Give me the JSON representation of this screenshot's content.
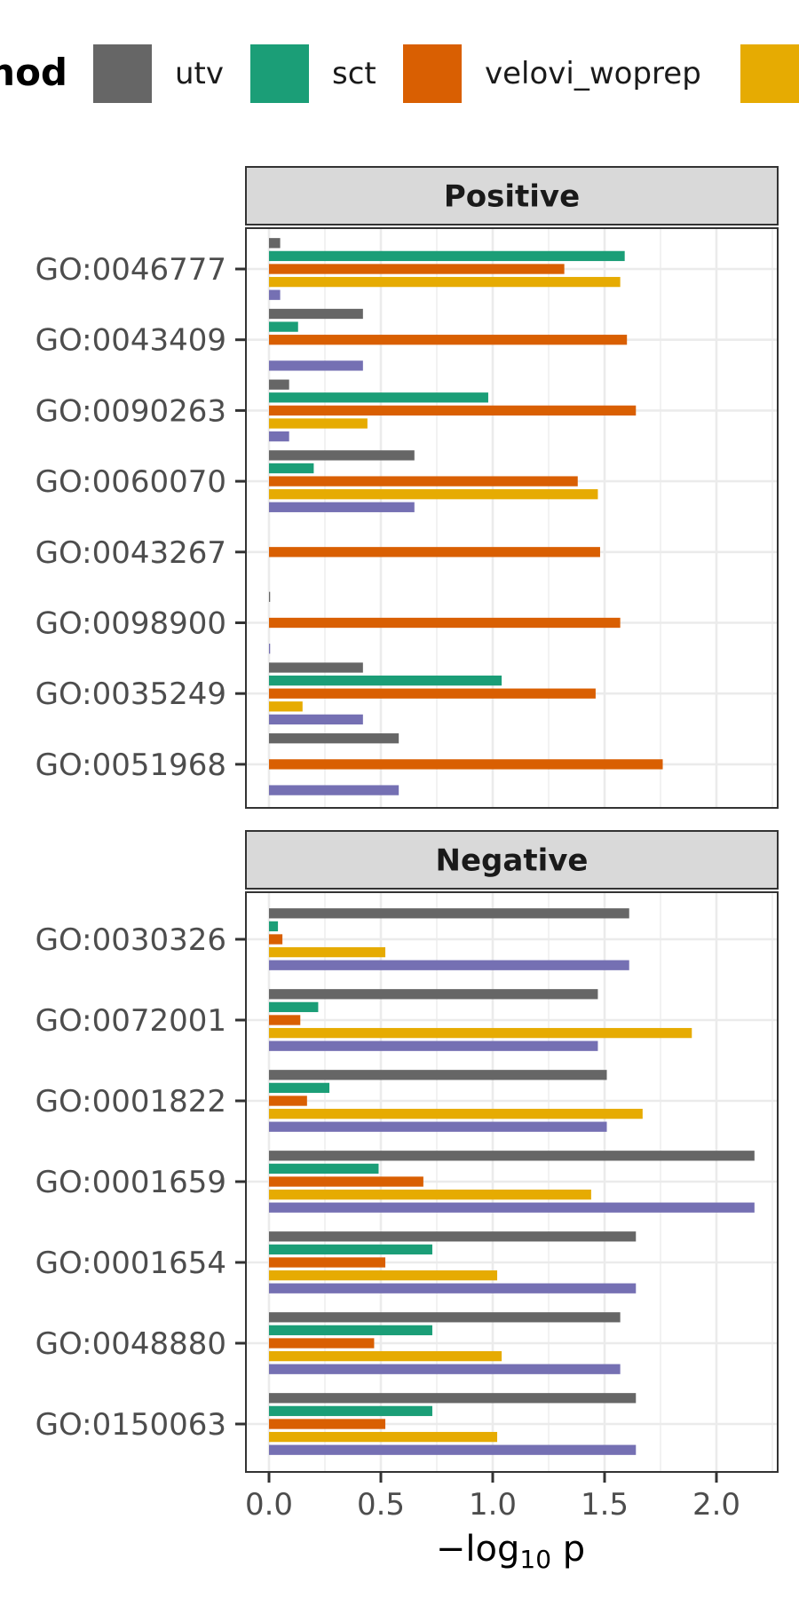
{
  "chart_data": {
    "type": "bar",
    "orientation": "horizontal",
    "legend": {
      "title": "Method",
      "position": "top",
      "entries": [
        {
          "name": "utv",
          "color": "#666666"
        },
        {
          "name": "sct",
          "color": "#1b9e77"
        },
        {
          "name": "velovi_woprep",
          "color": "#d95f02"
        },
        {
          "name": "",
          "color": "#e6ab02"
        },
        {
          "name": "",
          "color": "#7570b3"
        }
      ]
    },
    "xlabel_main": "−log",
    "xlabel_sub": "10",
    "xlabel_tail": " p",
    "xlim": [
      0,
      2.28
    ],
    "xticks": [
      0.0,
      0.5,
      1.0,
      1.5,
      2.0
    ],
    "xtick_labels": [
      "0.0",
      "0.5",
      "1.0",
      "1.5",
      "2.0"
    ],
    "grid": true,
    "panels": [
      {
        "title": "Positive",
        "categories": [
          "GO:0046777",
          "GO:0043409",
          "GO:0090263",
          "GO:0060070",
          "GO:0043267",
          "GO:0098900",
          "GO:0035249",
          "GO:0051968"
        ],
        "series": [
          {
            "values": [
              0.05,
              0.42,
              0.09,
              0.65,
              0.0,
              0.005,
              0.42,
              0.58
            ]
          },
          {
            "values": [
              1.59,
              0.13,
              0.98,
              0.2,
              0.0,
              0.0,
              1.04,
              0.0
            ]
          },
          {
            "values": [
              1.32,
              1.6,
              1.64,
              1.38,
              1.48,
              1.57,
              1.46,
              1.76
            ]
          },
          {
            "values": [
              1.57,
              0.0,
              0.44,
              1.47,
              0.0,
              0.0,
              0.15,
              0.0
            ]
          },
          {
            "values": [
              0.05,
              0.42,
              0.09,
              0.65,
              0.0,
              0.005,
              0.42,
              0.58
            ]
          }
        ]
      },
      {
        "title": "Negative",
        "categories": [
          "GO:0030326",
          "GO:0072001",
          "GO:0001822",
          "GO:0001659",
          "GO:0001654",
          "GO:0048880",
          "GO:0150063"
        ],
        "series": [
          {
            "values": [
              1.61,
              1.47,
              1.51,
              2.17,
              1.64,
              1.57,
              1.64
            ]
          },
          {
            "values": [
              0.04,
              0.22,
              0.27,
              0.49,
              0.73,
              0.73,
              0.73
            ]
          },
          {
            "values": [
              0.06,
              0.14,
              0.17,
              0.69,
              0.52,
              0.47,
              0.52
            ]
          },
          {
            "values": [
              0.52,
              1.89,
              1.67,
              1.44,
              1.02,
              1.04,
              1.02
            ]
          },
          {
            "values": [
              1.61,
              1.47,
              1.51,
              2.17,
              1.64,
              1.57,
              1.64
            ]
          }
        ]
      }
    ]
  }
}
